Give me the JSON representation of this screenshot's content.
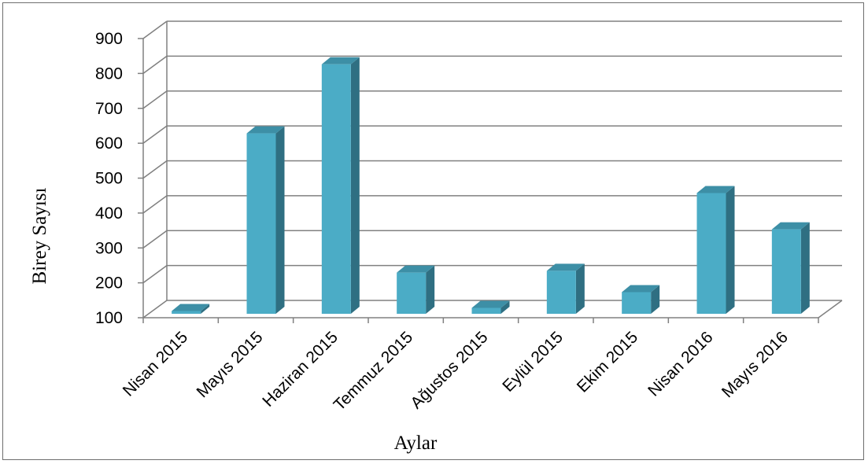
{
  "chart_data": {
    "type": "bar",
    "three_d": true,
    "title": "",
    "xlabel": "Aylar",
    "ylabel": "Birey Sayısı",
    "categories": [
      "Nisan 2015",
      "Mayıs 2015",
      "Haziran 2015",
      "Temmuz 2015",
      "Ağustos 2015",
      "Eylül 2015",
      "Ekim 2015",
      "Nisan 2016",
      "Mayıs 2016"
    ],
    "values": [
      108,
      617,
      815,
      218,
      117,
      223,
      162,
      446,
      342
    ],
    "ylim": [
      100,
      900
    ],
    "yticks": [
      "100",
      "200",
      "300",
      "400",
      "500",
      "600",
      "700",
      "800",
      "900"
    ],
    "grid": true,
    "legend": "none",
    "colors": {
      "bar_front": "#4bacc6",
      "bar_side": "#2f6f82",
      "bar_top": "#3d8fa6",
      "grid": "#808080"
    }
  }
}
